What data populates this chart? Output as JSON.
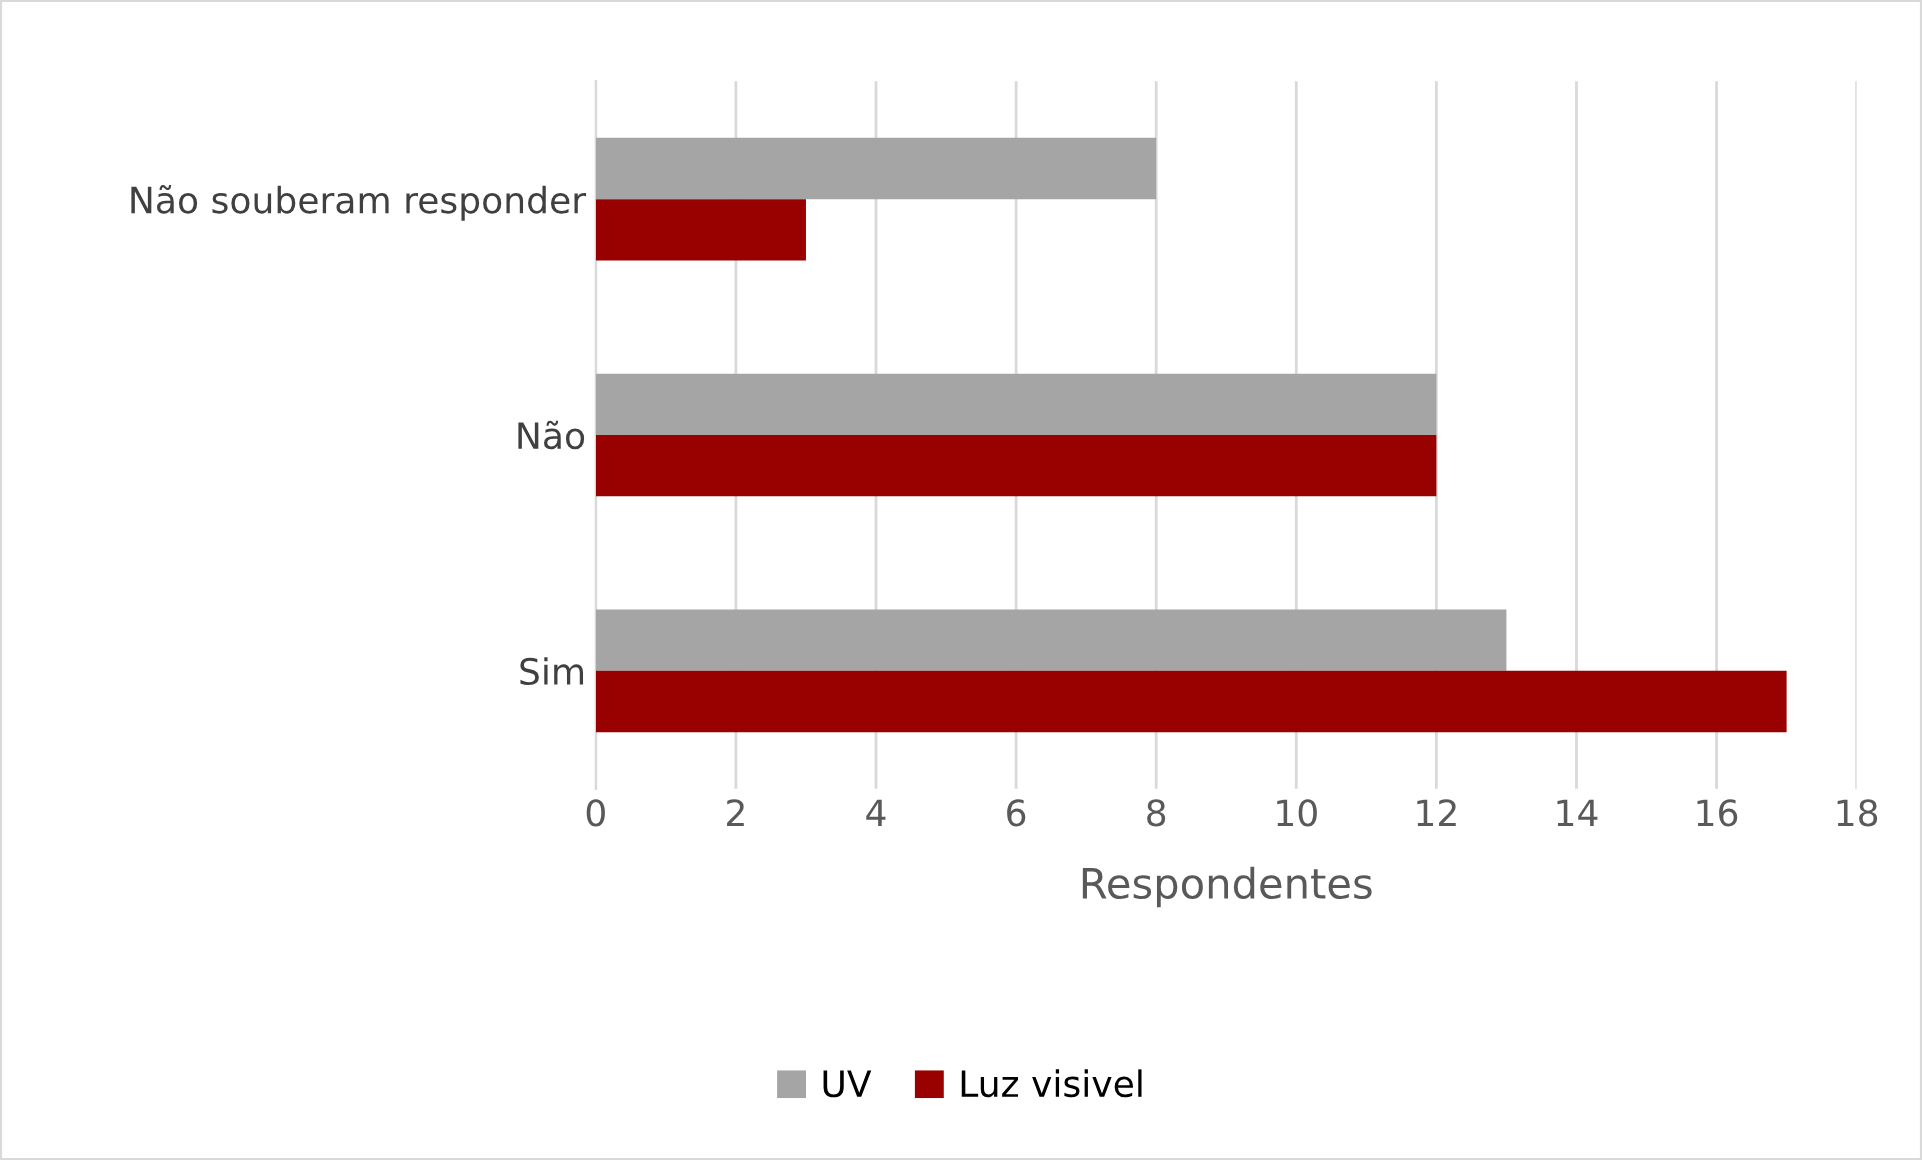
{
  "chart_data": {
    "type": "bar",
    "orientation": "horizontal",
    "xlabel": "Respondentes",
    "categories": [
      "Não souberam responder",
      "Não",
      "Sim"
    ],
    "series": [
      {
        "name": "UV",
        "color": "#a5a5a5",
        "values": [
          8,
          12,
          13
        ]
      },
      {
        "name": "Luz visivel",
        "color": "#990000",
        "values": [
          3,
          12,
          17
        ]
      }
    ],
    "xlim": [
      0,
      18
    ],
    "xticks": [
      0,
      2,
      4,
      6,
      8,
      10,
      12,
      14,
      16,
      18
    ],
    "grid": "x",
    "legend": "bottom"
  }
}
